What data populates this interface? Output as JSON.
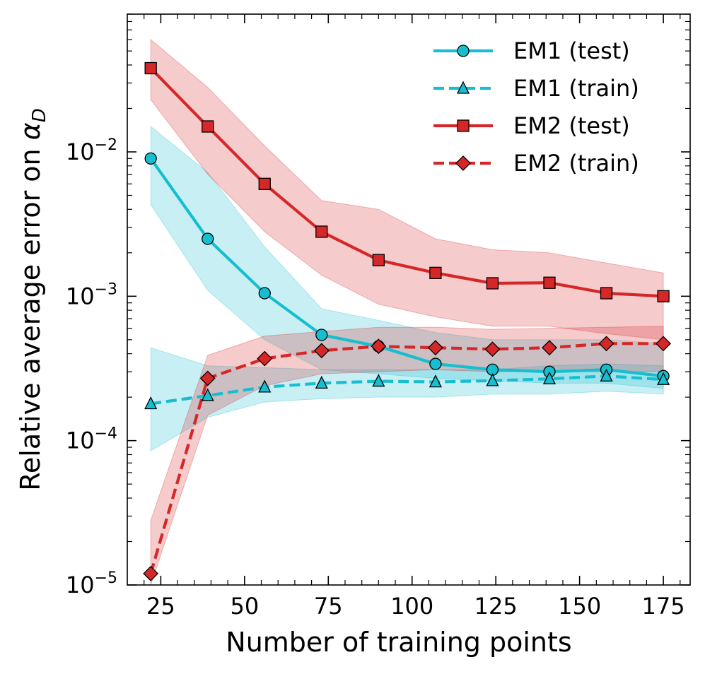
{
  "chart_data": {
    "type": "line",
    "title": "",
    "xlabel": "Number of training points",
    "ylabel_prefix": "Relative average error on ",
    "ylabel_symbol": "α",
    "ylabel_subscript": "D",
    "xscale": "linear",
    "yscale": "log",
    "xlim": [
      15,
      183
    ],
    "ylim": [
      1e-05,
      0.09
    ],
    "x_ticks": [
      25,
      50,
      75,
      100,
      125,
      150,
      175
    ],
    "x_tick_labels": [
      "25",
      "50",
      "75",
      "100",
      "125",
      "150",
      "175"
    ],
    "y_ticks": [
      1e-05,
      0.0001,
      0.001,
      0.01
    ],
    "y_tick_labels": [
      {
        "base": "10",
        "exp": "−5"
      },
      {
        "base": "10",
        "exp": "−4"
      },
      {
        "base": "10",
        "exp": "−3"
      },
      {
        "base": "10",
        "exp": "−2"
      }
    ],
    "legend_position": "top-right",
    "x": [
      22,
      39,
      56,
      73,
      90,
      107,
      124,
      141,
      158,
      175
    ],
    "series": [
      {
        "name": "EM1 (test)",
        "color": "#17becf",
        "line_style": "solid",
        "marker": "circle",
        "values": [
          0.009,
          0.0025,
          0.00105,
          0.00054,
          0.00045,
          0.00034,
          0.00031,
          0.0003,
          0.00031,
          0.00028
        ],
        "band_lower": [
          0.0043,
          0.0011,
          0.0005,
          0.00031,
          0.00029,
          0.00027,
          0.00026,
          0.00025,
          0.00025,
          0.00023
        ],
        "band_upper": [
          0.015,
          0.0072,
          0.0022,
          0.00082,
          0.00068,
          0.00056,
          0.0005,
          0.0005,
          0.0005,
          0.00047
        ]
      },
      {
        "name": "EM1 (train)",
        "color": "#17becf",
        "line_style": "dashed",
        "marker": "triangle",
        "values": [
          0.00018,
          0.000205,
          0.000235,
          0.00025,
          0.000258,
          0.000255,
          0.00026,
          0.000268,
          0.00028,
          0.000265
        ],
        "band_lower": [
          8.5e-05,
          0.000145,
          0.000185,
          0.000195,
          0.0002,
          0.0002,
          0.00021,
          0.00021,
          0.00022,
          0.00021
        ],
        "band_upper": [
          0.00044,
          0.00033,
          0.00032,
          0.00031,
          0.00031,
          0.00031,
          0.00031,
          0.00033,
          0.00034,
          0.00033
        ]
      },
      {
        "name": "EM2 (test)",
        "color": "#d62728",
        "line_style": "solid",
        "marker": "square",
        "values": [
          0.038,
          0.015,
          0.006,
          0.0028,
          0.00178,
          0.00145,
          0.00123,
          0.00124,
          0.00105,
          0.001
        ],
        "band_lower": [
          0.023,
          0.007,
          0.0028,
          0.0014,
          0.00088,
          0.00072,
          0.00062,
          0.00062,
          0.00055,
          0.0005
        ],
        "band_upper": [
          0.06,
          0.028,
          0.011,
          0.0046,
          0.004,
          0.0025,
          0.0021,
          0.002,
          0.0017,
          0.00145
        ]
      },
      {
        "name": "EM2 (train)",
        "color": "#d62728",
        "line_style": "dashed",
        "marker": "diamond",
        "values": [
          1.2e-05,
          0.00027,
          0.00037,
          0.00042,
          0.00045,
          0.00044,
          0.00043,
          0.00044,
          0.00047,
          0.00047
        ],
        "band_lower": [
          1e-05,
          0.00015,
          0.00024,
          0.00029,
          0.0003,
          0.00031,
          0.0003,
          0.0003,
          0.0003,
          0.0003
        ],
        "band_upper": [
          2.8e-05,
          0.00039,
          0.00053,
          0.00057,
          0.00061,
          0.00061,
          0.00059,
          0.0006,
          0.00061,
          0.00062
        ]
      }
    ]
  }
}
